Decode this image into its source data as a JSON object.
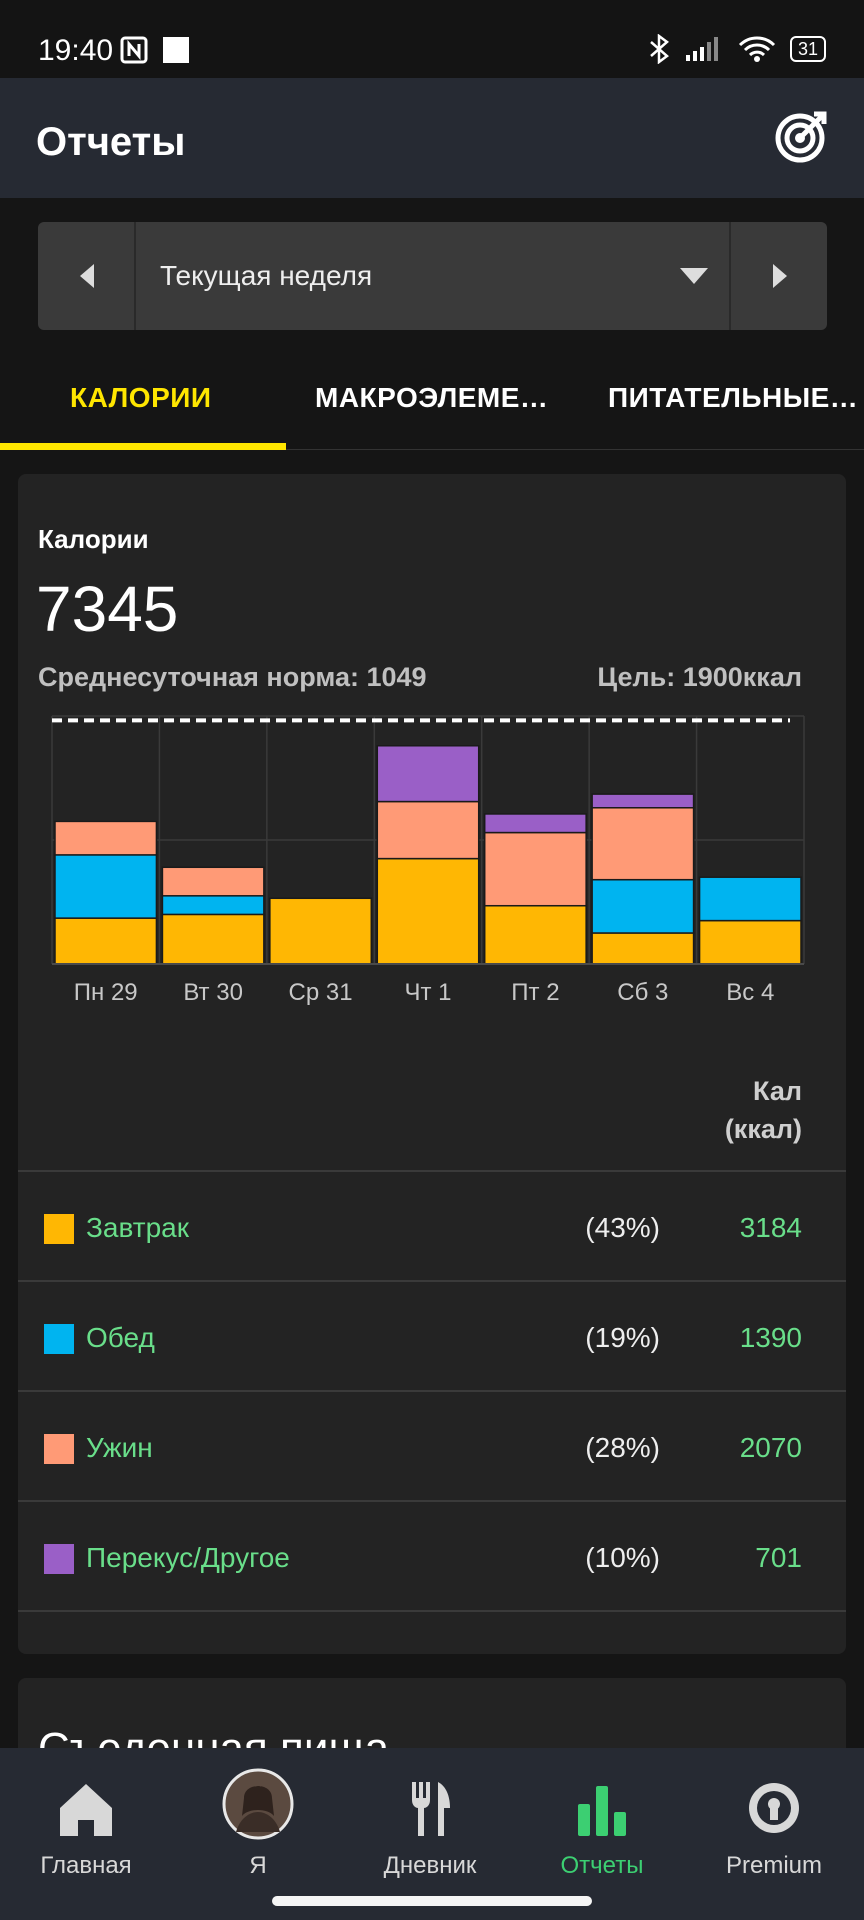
{
  "status_bar": {
    "time": "19:40",
    "battery": "31"
  },
  "app_bar": {
    "title": "Отчеты",
    "action_icon": "target-icon"
  },
  "date_selector": {
    "label": "Текущая неделя"
  },
  "tabs": [
    {
      "label": "КАЛОРИИ",
      "active": true
    },
    {
      "label": "МАКРОЭЛЕМЕ…",
      "active": false
    },
    {
      "label": "ПИТАТЕЛЬНЫЕ…",
      "active": false
    }
  ],
  "summary": {
    "title": "Калории",
    "total": "7345",
    "average": "Среднесуточная норма: 1049",
    "goal": "Цель: 1900ккал"
  },
  "chart_data": {
    "type": "bar",
    "stacked": true,
    "categories": [
      "Пн 29",
      "Вт 30",
      "Ср 31",
      "Чт 1",
      "Пт 2",
      "Сб 3",
      "Вс 4"
    ],
    "series": [
      {
        "name": "Завтрак",
        "color": "#ffb703",
        "values": [
          370,
          400,
          530,
          850,
          470,
          250,
          350
        ]
      },
      {
        "name": "Обед",
        "color": "#00b4f0",
        "values": [
          510,
          150,
          0,
          0,
          0,
          430,
          350
        ]
      },
      {
        "name": "Ужин",
        "color": "#ff9a76",
        "values": [
          270,
          230,
          0,
          460,
          590,
          580,
          0
        ]
      },
      {
        "name": "Перекус/Другое",
        "color": "#9a5fc7",
        "values": [
          0,
          0,
          0,
          450,
          150,
          110,
          0
        ]
      }
    ],
    "goal_value": 1900,
    "ylim": [
      0,
      2000
    ],
    "gridlines": [
      1000,
      2000
    ]
  },
  "table": {
    "column_header_line1": "Кал",
    "column_header_line2": "(ккал)",
    "rows": [
      {
        "name": "Завтрак",
        "percent": "(43%)",
        "value": "3184",
        "color": "#ffb703"
      },
      {
        "name": "Обед",
        "percent": "(19%)",
        "value": "1390",
        "color": "#00b4f0"
      },
      {
        "name": "Ужин",
        "percent": "(28%)",
        "value": "2070",
        "color": "#ff9a76"
      },
      {
        "name": "Перекус/Другое",
        "percent": "(10%)",
        "value": "701",
        "color": "#9a5fc7"
      }
    ]
  },
  "next_card": {
    "title": "Съеденная пища"
  },
  "bottom_nav": [
    {
      "label": "Главная",
      "icon": "home-icon",
      "active": false
    },
    {
      "label": "Я",
      "icon": "avatar",
      "active": false
    },
    {
      "label": "Дневник",
      "icon": "fork-knife-icon",
      "active": false
    },
    {
      "label": "Отчеты",
      "icon": "bar-chart-icon",
      "active": true
    },
    {
      "label": "Premium",
      "icon": "premium-badge-icon",
      "active": false
    }
  ]
}
